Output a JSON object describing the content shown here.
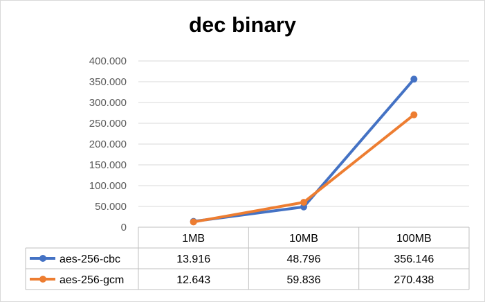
{
  "chart_data": {
    "type": "line",
    "title": "dec binary",
    "categories": [
      "1MB",
      "10MB",
      "100MB"
    ],
    "series": [
      {
        "name": "aes-256-cbc",
        "color": "#4472C4",
        "values": [
          13.916,
          48.796,
          356.146
        ],
        "labels": [
          "13.916",
          "48.796",
          "356.146"
        ]
      },
      {
        "name": "aes-256-gcm",
        "color": "#ED7D31",
        "values": [
          12.643,
          59.836,
          270.438
        ],
        "labels": [
          "12.643",
          "59.836",
          "270.438"
        ]
      }
    ],
    "ylim": [
      0,
      400
    ],
    "yticks": [
      "0",
      "50.000",
      "100.000",
      "150.000",
      "200.000",
      "250.000",
      "300.000",
      "350.000",
      "400.000"
    ],
    "grid": true,
    "legend": "data-table"
  }
}
